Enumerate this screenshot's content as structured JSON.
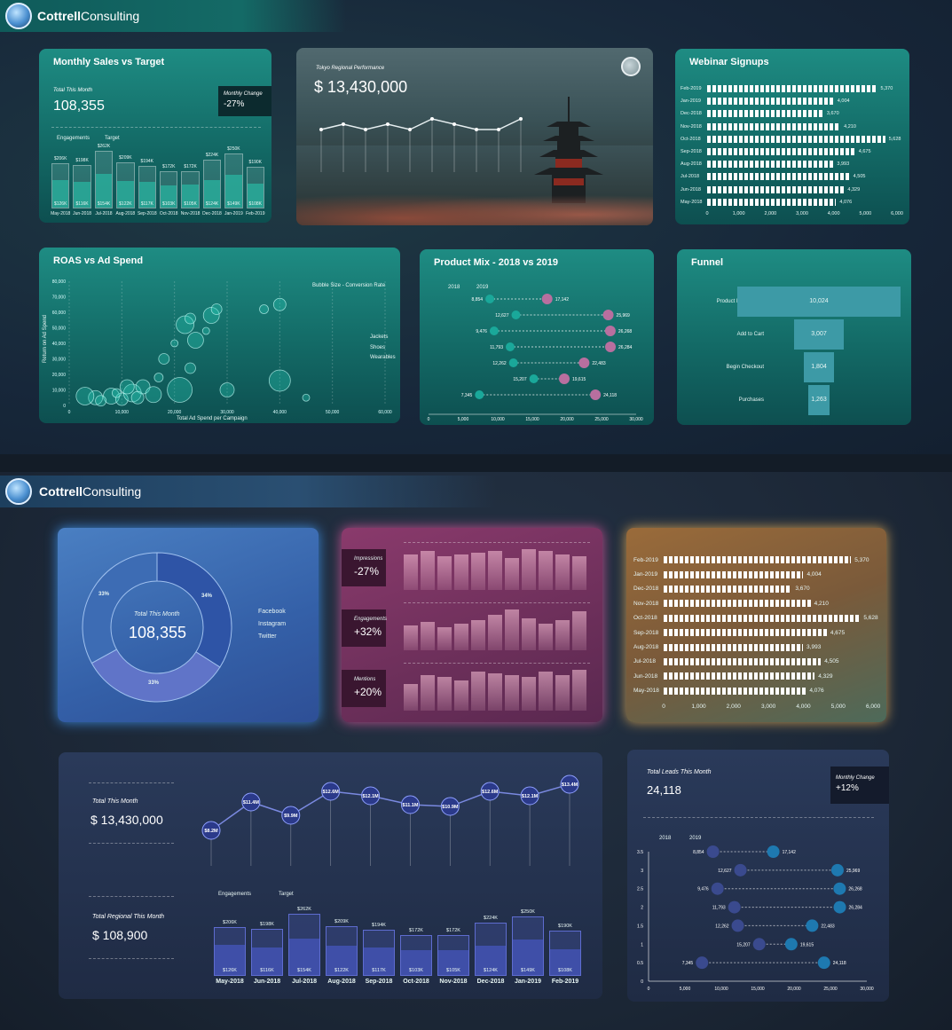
{
  "brand": {
    "bold": "Cottrell",
    "light": " Consulting"
  },
  "sales": {
    "title": "Monthly Sales vs Target",
    "total_label": "Total This Month",
    "total": "108,355",
    "change_label": "Monthly Change",
    "change": "-27%",
    "legend": [
      "Engagements",
      "Target"
    ],
    "months": [
      "May-2018",
      "Jun-2018",
      "Jul-2018",
      "Aug-2018",
      "Sep-2018",
      "Oct-2018",
      "Nov-2018",
      "Dec-2018",
      "Jan-2019",
      "Feb-2019"
    ],
    "targets": [
      "$206K",
      "$198K",
      "$262K",
      "$209K",
      "$194K",
      "$172K",
      "$172K",
      "$224K",
      "$250K",
      "$190K"
    ],
    "engagements": [
      "$126K",
      "$116K",
      "$154K",
      "$122K",
      "$117K",
      "$103K",
      "$105K",
      "$124K",
      "$149K",
      "$108K"
    ],
    "target_vals": [
      206,
      198,
      262,
      209,
      194,
      172,
      172,
      224,
      250,
      190
    ],
    "eng_vals": [
      126,
      116,
      154,
      122,
      117,
      103,
      105,
      124,
      149,
      108
    ]
  },
  "tokyo": {
    "label": "Tokyo Regional Performance",
    "value": "$ 13,430,000",
    "line": [
      8,
      9,
      8,
      9,
      8,
      10,
      9,
      8,
      8,
      10
    ]
  },
  "webinar": {
    "title": "Webinar Signups",
    "rows": [
      {
        "m": "Feb-2019",
        "v": "5,370",
        "n": 5370
      },
      {
        "m": "Jan-2019",
        "v": "4,004",
        "n": 4004
      },
      {
        "m": "Dec-2018",
        "v": "3,670",
        "n": 3670
      },
      {
        "m": "Nov-2018",
        "v": "4,210",
        "n": 4210
      },
      {
        "m": "Oct-2018",
        "v": "5,628",
        "n": 5628
      },
      {
        "m": "Sep-2018",
        "v": "4,675",
        "n": 4675
      },
      {
        "m": "Aug-2018",
        "v": "3,993",
        "n": 3993
      },
      {
        "m": "Jul-2018",
        "v": "4,505",
        "n": 4505
      },
      {
        "m": "Jun-2018",
        "v": "4,329",
        "n": 4329
      },
      {
        "m": "May-2018",
        "v": "4,076",
        "n": 4076
      }
    ],
    "ticks": [
      "0",
      "1,000",
      "2,000",
      "3,000",
      "4,000",
      "5,000",
      "6,000"
    ]
  },
  "roas": {
    "title": "ROAS vs Ad Spend",
    "bubble_note": "Bubble Size - Conversion Rate",
    "ylabel": "Return on Ad Spend",
    "xlabel": "Total Ad Spend per Campaign",
    "yticks": [
      "80,000",
      "70,000",
      "60,000",
      "50,000",
      "40,000",
      "30,000",
      "20,000",
      "10,000",
      "0"
    ],
    "xticks": [
      "0",
      "10,000",
      "20,000",
      "30,000",
      "40,000",
      "50,000",
      "60,000"
    ],
    "legend": [
      "Jackets",
      "Shoes",
      "Wearables"
    ]
  },
  "mix": {
    "title": "Product Mix - 2018 vs 2019",
    "legend": [
      "2018",
      "2019"
    ],
    "rows": [
      {
        "a": "8,854",
        "b": "17,142",
        "x1": 8854,
        "x2": 17142
      },
      {
        "a": "12,627",
        "b": "25,969",
        "x1": 12627,
        "x2": 25969
      },
      {
        "a": "9,476",
        "b": "26,268",
        "x1": 9476,
        "x2": 26268
      },
      {
        "a": "11,793",
        "b": "26,284",
        "x1": 11793,
        "x2": 26284
      },
      {
        "a": "12,262",
        "b": "22,483",
        "x1": 12262,
        "x2": 22483
      },
      {
        "a": "15,207",
        "b": "19,615",
        "x1": 15207,
        "x2": 19615
      },
      {
        "a": "7,345",
        "b": "24,118",
        "x1": 7345,
        "x2": 24118
      }
    ],
    "ticks": [
      "0",
      "5,000",
      "10,000",
      "15,000",
      "20,000",
      "25,000",
      "30,000"
    ]
  },
  "funnel": {
    "title": "Funnel",
    "rows": [
      {
        "l": "Product Detail Page",
        "v": "10,024",
        "n": 10024
      },
      {
        "l": "Add to Cart",
        "v": "3,007",
        "n": 3007
      },
      {
        "l": "Begin Checkout",
        "v": "1,804",
        "n": 1804
      },
      {
        "l": "Purchases",
        "v": "1,263",
        "n": 1263
      }
    ]
  },
  "donut": {
    "center_label": "Total This Month",
    "center_value": "108,355",
    "slices": [
      "33%",
      "34%",
      "33%"
    ],
    "legend": [
      "Facebook",
      "Instagram",
      "Twitter"
    ]
  },
  "pink": {
    "rows": [
      {
        "l": "Impressions",
        "v": "-27%"
      },
      {
        "l": "Engagements",
        "v": "+32%"
      },
      {
        "l": "Mentions",
        "v": "+20%"
      }
    ]
  },
  "line": {
    "total_label": "Total This Month",
    "total": "$ 13,430,000",
    "regional_label": "Total  Regional This Month",
    "regional": "$ 108,900",
    "points": [
      "$8.2M",
      "$11.4M",
      "$9.9M",
      "$12.6M",
      "$12.1M",
      "$11.1M",
      "$10.9M",
      "$12.6M",
      "$12.1M",
      "$13.4M"
    ],
    "vals": [
      8.2,
      11.4,
      9.9,
      12.6,
      12.1,
      11.1,
      10.9,
      12.6,
      12.1,
      13.4
    ]
  },
  "leads": {
    "label": "Total  Leads This Month",
    "value": "24,118",
    "change_label": "Monthly Change",
    "change": "+12%",
    "yticks": [
      "3.5",
      "3",
      "2.5",
      "2",
      "1.5",
      "1",
      "0.5",
      "0"
    ]
  },
  "colors": {
    "teal": "#1e8c83",
    "accent_pink": "#c77fb8",
    "navy": "#3f4fa8"
  }
}
